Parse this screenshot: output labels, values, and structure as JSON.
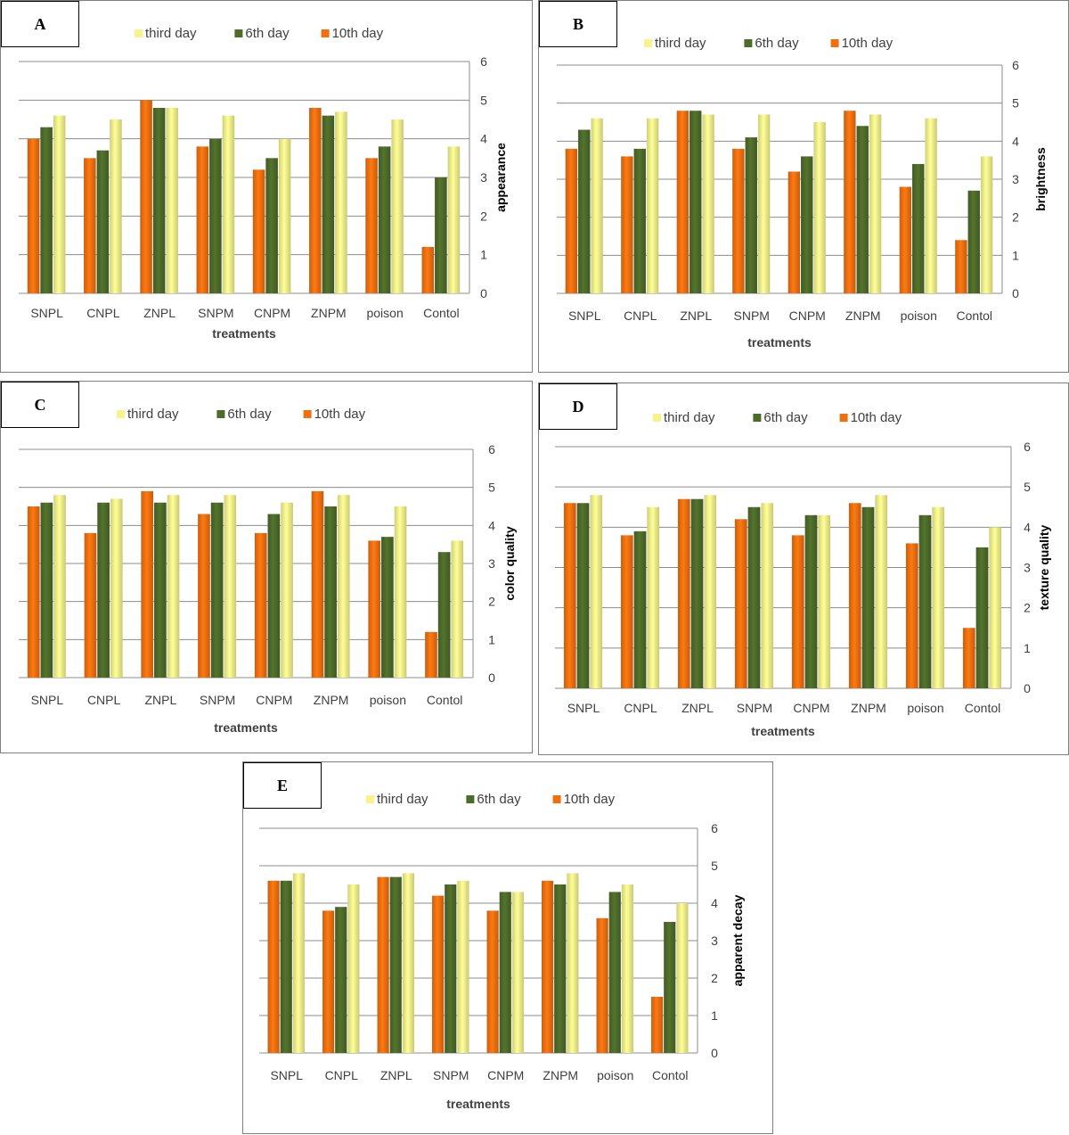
{
  "colors": {
    "third_day": "#f5f58c",
    "sixth_day": "#4e6b2a",
    "tenth_day": "#f07010",
    "grid": "#8c8c8c"
  },
  "legend_order": [
    "third_day",
    "6th_day",
    "10th_day"
  ],
  "bar_order": [
    "10th_day",
    "6th_day",
    "third_day"
  ],
  "chart_data": [
    {
      "panel": "A",
      "type": "bar",
      "categories": [
        "SNPL",
        "CNPL",
        "ZNPL",
        "SNPM",
        "CNPM",
        "ZNPM",
        "poison",
        "Contol"
      ],
      "series": [
        {
          "key": "third_day",
          "name": "third day",
          "values": [
            4.6,
            4.5,
            4.8,
            4.6,
            4.0,
            4.7,
            4.5,
            3.8
          ]
        },
        {
          "key": "6th_day",
          "name": "6th day",
          "values": [
            4.3,
            3.7,
            4.8,
            4.0,
            3.5,
            4.6,
            3.8,
            3.0
          ]
        },
        {
          "key": "10th_day",
          "name": "10th day",
          "values": [
            4.0,
            3.5,
            5.0,
            3.8,
            3.2,
            4.8,
            3.5,
            1.2
          ]
        }
      ],
      "xlabel": "treatments",
      "ylabel": "appearance",
      "ylim": [
        0,
        6
      ],
      "yticks": [
        "0",
        "1",
        "2",
        "3",
        "4",
        "5",
        "6"
      ],
      "grid": true,
      "legend": "top"
    },
    {
      "panel": "B",
      "type": "bar",
      "categories": [
        "SNPL",
        "CNPL",
        "ZNPL",
        "SNPM",
        "CNPM",
        "ZNPM",
        "poison",
        "Contol"
      ],
      "series": [
        {
          "key": "third_day",
          "name": "third day",
          "values": [
            4.6,
            4.6,
            4.7,
            4.7,
            4.5,
            4.7,
            4.6,
            3.6
          ]
        },
        {
          "key": "6th_day",
          "name": "6th day",
          "values": [
            4.3,
            3.8,
            4.8,
            4.1,
            3.6,
            4.4,
            3.4,
            2.7
          ]
        },
        {
          "key": "10th_day",
          "name": "10th day",
          "values": [
            3.8,
            3.6,
            4.8,
            3.8,
            3.2,
            4.8,
            2.8,
            1.4
          ]
        }
      ],
      "xlabel": "treatments",
      "ylabel": "brightness",
      "ylim": [
        0,
        6
      ],
      "yticks": [
        "0",
        "1",
        "2",
        "3",
        "4",
        "5",
        "6"
      ],
      "grid": true,
      "legend": "top"
    },
    {
      "panel": "C",
      "type": "bar",
      "categories": [
        "SNPL",
        "CNPL",
        "ZNPL",
        "SNPM",
        "CNPM",
        "ZNPM",
        "poison",
        "Contol"
      ],
      "series": [
        {
          "key": "third_day",
          "name": "third day",
          "values": [
            4.8,
            4.7,
            4.8,
            4.8,
            4.6,
            4.8,
            4.5,
            3.6
          ]
        },
        {
          "key": "6th_day",
          "name": "6th day",
          "values": [
            4.6,
            4.6,
            4.6,
            4.6,
            4.3,
            4.5,
            3.7,
            3.3
          ]
        },
        {
          "key": "10th_day",
          "name": "10th day",
          "values": [
            4.5,
            3.8,
            4.9,
            4.3,
            3.8,
            4.9,
            3.6,
            1.2
          ]
        }
      ],
      "xlabel": "treatments",
      "ylabel": "color quality",
      "ylim": [
        0,
        6
      ],
      "yticks": [
        "0",
        "1",
        "2",
        "3",
        "4",
        "5",
        "6"
      ],
      "grid": true,
      "legend": "top"
    },
    {
      "panel": "D",
      "type": "bar",
      "categories": [
        "SNPL",
        "CNPL",
        "ZNPL",
        "SNPM",
        "CNPM",
        "ZNPM",
        "poison",
        "Contol"
      ],
      "series": [
        {
          "key": "third_day",
          "name": "third day",
          "values": [
            4.8,
            4.5,
            4.8,
            4.6,
            4.3,
            4.8,
            4.5,
            4.0
          ]
        },
        {
          "key": "6th_day",
          "name": "6th day",
          "values": [
            4.6,
            3.9,
            4.7,
            4.5,
            4.3,
            4.5,
            4.3,
            3.5
          ]
        },
        {
          "key": "10th_day",
          "name": "10th day",
          "values": [
            4.6,
            3.8,
            4.7,
            4.2,
            3.8,
            4.6,
            3.6,
            1.5
          ]
        }
      ],
      "xlabel": "treatments",
      "ylabel": "texture quality",
      "ylim": [
        0,
        6
      ],
      "yticks": [
        "0",
        "1",
        "2",
        "3",
        "4",
        "5",
        "6"
      ],
      "grid": true,
      "legend": "top"
    },
    {
      "panel": "E",
      "type": "bar",
      "categories": [
        "SNPL",
        "CNPL",
        "ZNPL",
        "SNPM",
        "CNPM",
        "ZNPM",
        "poison",
        "Contol"
      ],
      "series": [
        {
          "key": "third_day",
          "name": "third day",
          "values": [
            4.8,
            4.5,
            4.8,
            4.6,
            4.3,
            4.8,
            4.5,
            4.0
          ]
        },
        {
          "key": "6th_day",
          "name": "6th day",
          "values": [
            4.6,
            3.9,
            4.7,
            4.5,
            4.3,
            4.5,
            4.3,
            3.5
          ]
        },
        {
          "key": "10th_day",
          "name": "10th day",
          "values": [
            4.6,
            3.8,
            4.7,
            4.2,
            3.8,
            4.6,
            3.6,
            1.5
          ]
        }
      ],
      "xlabel": "treatments",
      "ylabel": "apparent decay",
      "ylim": [
        0,
        6
      ],
      "yticks": [
        "0",
        "1",
        "2",
        "3",
        "4",
        "5",
        "6"
      ],
      "grid": true,
      "legend": "top"
    }
  ]
}
